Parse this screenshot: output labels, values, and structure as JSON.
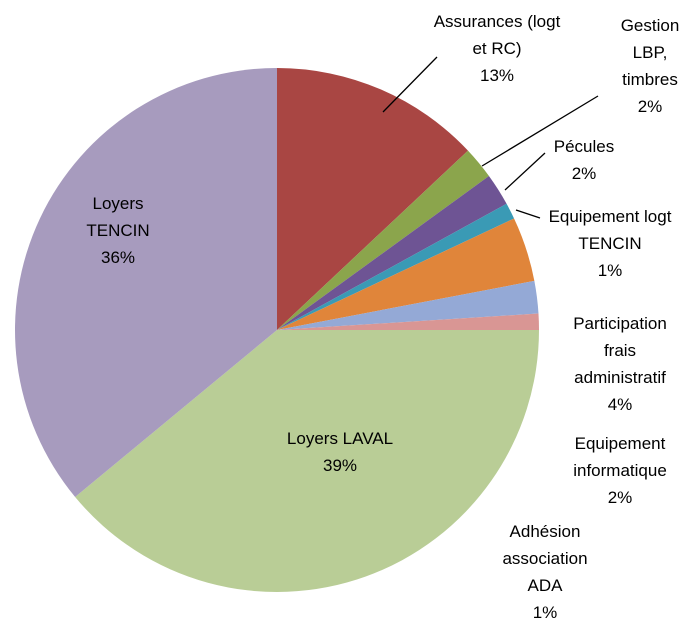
{
  "chart_data": {
    "type": "pie",
    "categories": [
      "Assurances (logt et RC)",
      "Gestion LBP, timbres",
      "Pécules",
      "Equipement logt TENCIN",
      "Participation frais administratif",
      "Equipement informatique",
      "Adhésion association ADA",
      "Loyers LAVAL",
      "Loyers TENCIN"
    ],
    "values": [
      13,
      2,
      2,
      1,
      4,
      2,
      1,
      39,
      36
    ],
    "value_labels": [
      "13%",
      "2%",
      "2%",
      "1%",
      "4%",
      "2%",
      "1%",
      "39%",
      "36%"
    ],
    "colors": [
      "#a94643",
      "#8ba54c",
      "#6e5494",
      "#3a9ab5",
      "#e0853a",
      "#94a9d6",
      "#d99694",
      "#b9cd96",
      "#a79bbe"
    ]
  }
}
